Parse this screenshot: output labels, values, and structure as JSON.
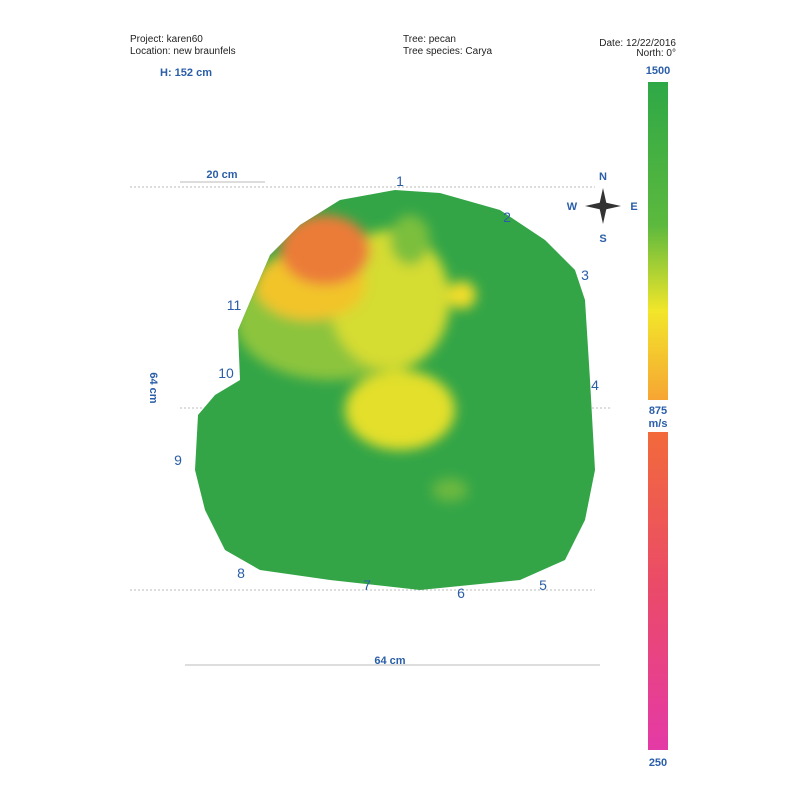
{
  "header": {
    "project": "Project: karen60",
    "location": "Location: new braunfels",
    "tree": "Tree: pecan",
    "species": "Tree species: Carya",
    "date": "Date: 12/22/2016",
    "north": "North: 0°"
  },
  "height": "H: 152 cm",
  "dimensions": {
    "top": "20 cm",
    "left": "64 cm",
    "bottom": "64 cm"
  },
  "compass": {
    "n": "N",
    "s": "S",
    "e": "E",
    "w": "W"
  },
  "sensors": [
    "1",
    "2",
    "3",
    "4",
    "5",
    "6",
    "7",
    "8",
    "9",
    "10",
    "11"
  ],
  "scale": {
    "max": "1500",
    "mid": "875",
    "unit": "m/s",
    "min": "250"
  }
}
